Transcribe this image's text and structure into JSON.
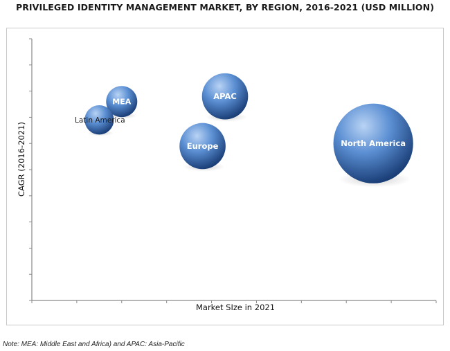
{
  "chart_data": {
    "type": "bubble",
    "title": "PRIVILEGED IDENTITY MANAGEMENT MARKET, BY REGION, 2016-2021 (USD MILLION)",
    "xlabel": "Market SIze in 2021",
    "ylabel": "CAGR (2016-2021)",
    "grid": false,
    "tick_labels": false,
    "series": [
      {
        "name": "MEA",
        "x": 2.0,
        "y": 7.6,
        "size": 1.0
      },
      {
        "name": "Latin America",
        "x": 1.5,
        "y": 6.9,
        "size": 0.9
      },
      {
        "name": "APAC",
        "x": 4.3,
        "y": 7.8,
        "size": 1.8
      },
      {
        "name": "Europe",
        "x": 3.8,
        "y": 5.9,
        "size": 1.8
      },
      {
        "name": "North America",
        "x": 7.6,
        "y": 6.0,
        "size": 3.6
      }
    ],
    "xlim": [
      0,
      9
    ],
    "ylim": [
      0,
      10
    ]
  },
  "note": "Note: MEA: Middle East and Africa) and APAC: Asia-Pacific",
  "colors": {
    "bubble_light": "#a8c6ee",
    "bubble_mid": "#4a7fc7",
    "bubble_dark": "#1c3f78",
    "axis": "#8a8a8a"
  }
}
